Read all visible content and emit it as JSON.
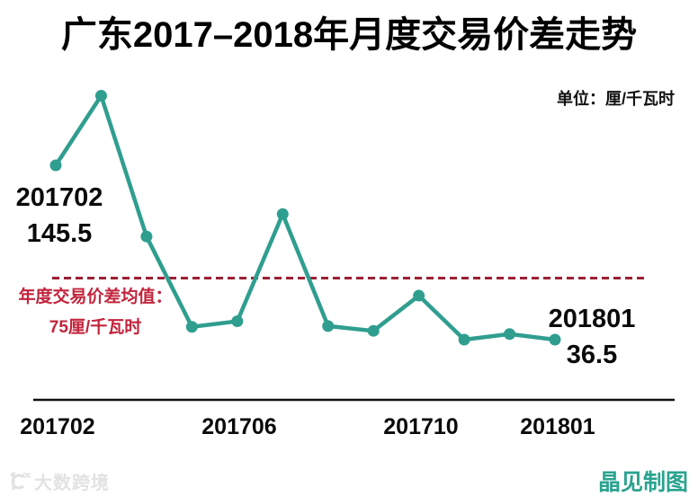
{
  "title": "广东2017–2018年月度交易价差走势",
  "unit_label": "单位：厘/千瓦时",
  "annotations": {
    "start_month": "201702",
    "start_value": "145.5",
    "end_month": "201801",
    "end_value": "36.5",
    "mean_label_line1": "年度交易价差均值：",
    "mean_label_line2": "75厘/千瓦时"
  },
  "x_axis_labels": [
    "201702",
    "201706",
    "201710",
    "201801"
  ],
  "watermark": "大数跨境",
  "credit": "晶见制图",
  "colors": {
    "line": "#2f9e8f",
    "mean_dash": "#9c2035",
    "mean_text": "#c2243c",
    "credit": "#2aa38f",
    "axis": "#111111"
  },
  "chart_data": {
    "type": "line",
    "title": "广东2017–2018年月度交易价差走势",
    "ylabel": "厘/千瓦时",
    "x": [
      "201702",
      "201703",
      "201704",
      "201705",
      "201706",
      "201707",
      "201708",
      "201709",
      "201710",
      "201711",
      "201712",
      "201801"
    ],
    "values": [
      145.5,
      189,
      101,
      44.5,
      48,
      115,
      45,
      42,
      64,
      36.5,
      40,
      36.5
    ],
    "mean_value": 75,
    "labeled_points": [
      {
        "x": "201702",
        "value": 145.5
      },
      {
        "x": "201801",
        "value": 36.5
      }
    ],
    "ylim": [
      30,
      195
    ],
    "grid": false,
    "legend": false
  }
}
